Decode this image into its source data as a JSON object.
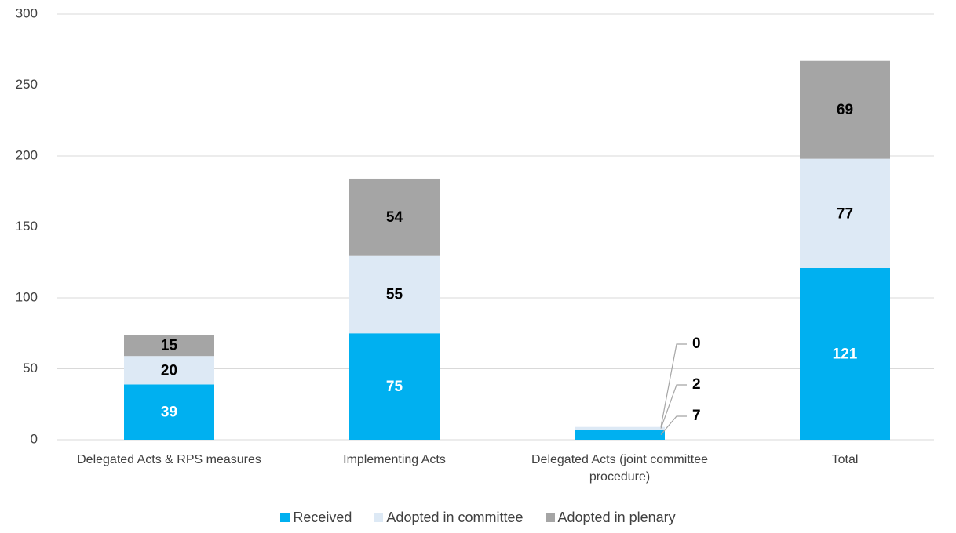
{
  "chart_data": {
    "type": "stacked_bar",
    "categories": [
      "Delegated Acts & RPS measures",
      "Implementing Acts",
      "Delegated Acts (joint committee procedure)",
      "Total"
    ],
    "series": [
      {
        "name": "Received",
        "color": "#00b0f0",
        "values": [
          39,
          75,
          7,
          121
        ]
      },
      {
        "name": "Adopted in committee",
        "color": "#dde9f5",
        "values": [
          20,
          55,
          2,
          77
        ]
      },
      {
        "name": "Adopted in plenary",
        "color": "#a5a5a5",
        "values": [
          15,
          54,
          0,
          69
        ]
      }
    ],
    "ylim": [
      0,
      300
    ],
    "yticks": [
      0,
      50,
      100,
      150,
      200,
      250,
      300
    ],
    "grid": true,
    "legend": "bottom"
  }
}
